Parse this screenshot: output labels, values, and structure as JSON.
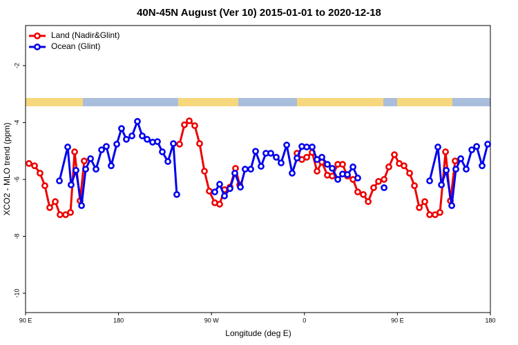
{
  "chart_data": {
    "type": "line",
    "title": "40N-45N August (Ver 10)   2015-01-01 to 2020-12-18",
    "x_label": "Longitude (deg E)",
    "y_label": "XCO2 - MLO trend (ppm)",
    "legend": "top-left",
    "xlim": [
      90,
      540
    ],
    "xticks": [
      {
        "value": 90,
        "label": "90 E"
      },
      {
        "value": 180,
        "label": "180"
      },
      {
        "value": 270,
        "label": "90 W"
      },
      {
        "value": 360,
        "label": "0"
      },
      {
        "value": 450,
        "label": "90 E"
      },
      {
        "value": 540,
        "label": "180"
      }
    ],
    "ylim": [
      -10.68,
      -0.59
    ],
    "yticks": [
      -2,
      -4,
      -6,
      -8,
      -10
    ],
    "series": [
      {
        "name": "Land (Nadir&Glint)",
        "color": "#ee0000",
        "x": [
          93.3,
          98.7,
          104.0,
          108.7,
          113.4,
          118.8,
          123.4,
          128.8,
          133.5,
          137.5,
          142.8,
          146.8,
          null,
          239.1,
          243.8,
          248.5,
          253.8,
          258.5,
          263.2,
          267.9,
          273.2,
          277.9,
          282.6,
          287.9,
          293.3,
          297.3,
          null,
          352.8,
          357.5,
          362.2,
          367.5,
          372.2,
          376.9,
          382.2,
          386.9,
          392.3,
          396.9,
          401.6,
          407.0,
          411.6,
          417.0,
          421.7,
          427.0,
          431.7,
          437.1,
          441.7,
          447.1,
          451.8,
          456.4,
          461.8,
          466.5,
          471.2,
          476.5,
          481.2,
          486.5,
          491.2,
          496.6,
          501.3,
          505.9
        ],
        "values": [
          -5.44,
          -5.52,
          -5.78,
          -6.22,
          -6.99,
          -6.78,
          -7.24,
          -7.24,
          -7.16,
          -5.03,
          -6.75,
          -5.35,
          null,
          -4.76,
          -4.08,
          -3.94,
          -4.11,
          -4.74,
          -5.71,
          -6.41,
          -6.82,
          -6.87,
          -6.36,
          -6.27,
          -5.61,
          -6.19,
          null,
          -5.08,
          -5.3,
          -5.22,
          -5.05,
          -5.71,
          -5.39,
          -5.85,
          -5.88,
          -5.47,
          -5.47,
          -5.88,
          -6.0,
          -6.44,
          -6.53,
          -6.78,
          -6.29,
          -6.07,
          -6.0,
          -5.56,
          -5.13,
          -5.44,
          -5.52,
          -5.78,
          -6.22,
          -6.99,
          -6.78,
          -7.24,
          -7.24,
          -7.16,
          -5.03,
          -6.75,
          -5.35
        ]
      },
      {
        "name": "Ocean (Glint)",
        "color": "#0000ee",
        "x": [
          122.8,
          130.8,
          134.1,
          138.8,
          144.2,
          148.2,
          152.9,
          158.2,
          163.6,
          168.2,
          172.9,
          178.3,
          182.9,
          187.6,
          193.0,
          198.3,
          203.0,
          207.7,
          213.0,
          217.7,
          222.4,
          227.8,
          233.1,
          236.4,
          null,
          273.2,
          277.9,
          282.6,
          287.9,
          292.6,
          298.0,
          302.6,
          308.0,
          312.7,
          318.0,
          322.7,
          327.4,
          332.7,
          337.4,
          342.8,
          348.1,
          352.8,
          357.5,
          362.2,
          367.5,
          372.2,
          376.9,
          382.2,
          386.9,
          392.3,
          396.9,
          401.6,
          407.0,
          411.6,
          null,
          437.1,
          null,
          481.2,
          489.2,
          492.6,
          497.3,
          502.6,
          506.6,
          511.3,
          516.6,
          522.0,
          526.7,
          532.0,
          537.4
        ],
        "values": [
          -6.05,
          -4.86,
          -6.19,
          -5.68,
          -6.92,
          -5.64,
          -5.27,
          -5.64,
          -4.96,
          -4.84,
          -5.52,
          -4.76,
          -4.21,
          -4.59,
          -4.47,
          -3.96,
          -4.47,
          -4.59,
          -4.69,
          -4.67,
          -5.03,
          -5.37,
          -4.74,
          -6.53,
          null,
          -6.44,
          -6.17,
          -6.58,
          -6.32,
          -5.78,
          -6.27,
          -5.64,
          -5.64,
          -5.01,
          -5.54,
          -5.08,
          -5.08,
          -5.22,
          -5.42,
          -4.79,
          -5.78,
          -5.25,
          -4.84,
          -4.86,
          -4.86,
          -5.3,
          -5.22,
          -5.47,
          -5.61,
          -6.0,
          -5.81,
          -5.83,
          -5.56,
          -5.95,
          null,
          -6.29,
          null,
          -6.05,
          -4.86,
          -6.19,
          -5.68,
          -6.92,
          -5.64,
          -5.27,
          -5.64,
          -4.96,
          -4.84,
          -5.52,
          -4.76
        ]
      }
    ]
  }
}
